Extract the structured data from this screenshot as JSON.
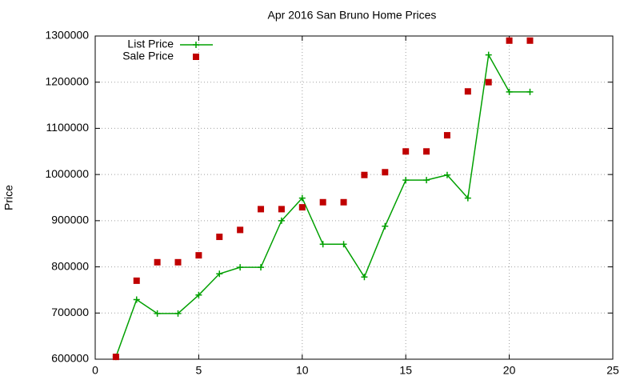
{
  "chart_data": {
    "type": "line",
    "title": "Apr 2016 San Bruno Home Prices",
    "y_label": "Price",
    "x": [
      1,
      2,
      3,
      4,
      5,
      6,
      7,
      8,
      9,
      10,
      11,
      12,
      13,
      14,
      15,
      16,
      17,
      18,
      19,
      20,
      21
    ],
    "series": [
      {
        "name": "List Price",
        "color": "#00a000",
        "style": "linespoints",
        "values": [
          605000,
          729000,
          699000,
          699000,
          739000,
          785000,
          799000,
          799000,
          900000,
          949000,
          849000,
          849000,
          778000,
          888000,
          988000,
          988000,
          999000,
          949000,
          1259000,
          1179000,
          1179000
        ]
      },
      {
        "name": "Sale Price",
        "color": "#c00000",
        "style": "points",
        "values": [
          605000,
          770000,
          810000,
          810000,
          825000,
          865000,
          880000,
          925000,
          925000,
          929000,
          940000,
          940000,
          999000,
          1005000,
          1050000,
          1050000,
          1085000,
          1180000,
          1200000,
          1290000,
          1290000
        ]
      }
    ],
    "xlim": [
      0,
      25
    ],
    "xticks": [
      0,
      5,
      10,
      15,
      20,
      25
    ],
    "ylim": [
      600000,
      1300000
    ],
    "yticks": [
      600000,
      700000,
      800000,
      900000,
      1000000,
      1100000,
      1200000,
      1300000
    ],
    "grid": true,
    "legend": "top-left"
  }
}
